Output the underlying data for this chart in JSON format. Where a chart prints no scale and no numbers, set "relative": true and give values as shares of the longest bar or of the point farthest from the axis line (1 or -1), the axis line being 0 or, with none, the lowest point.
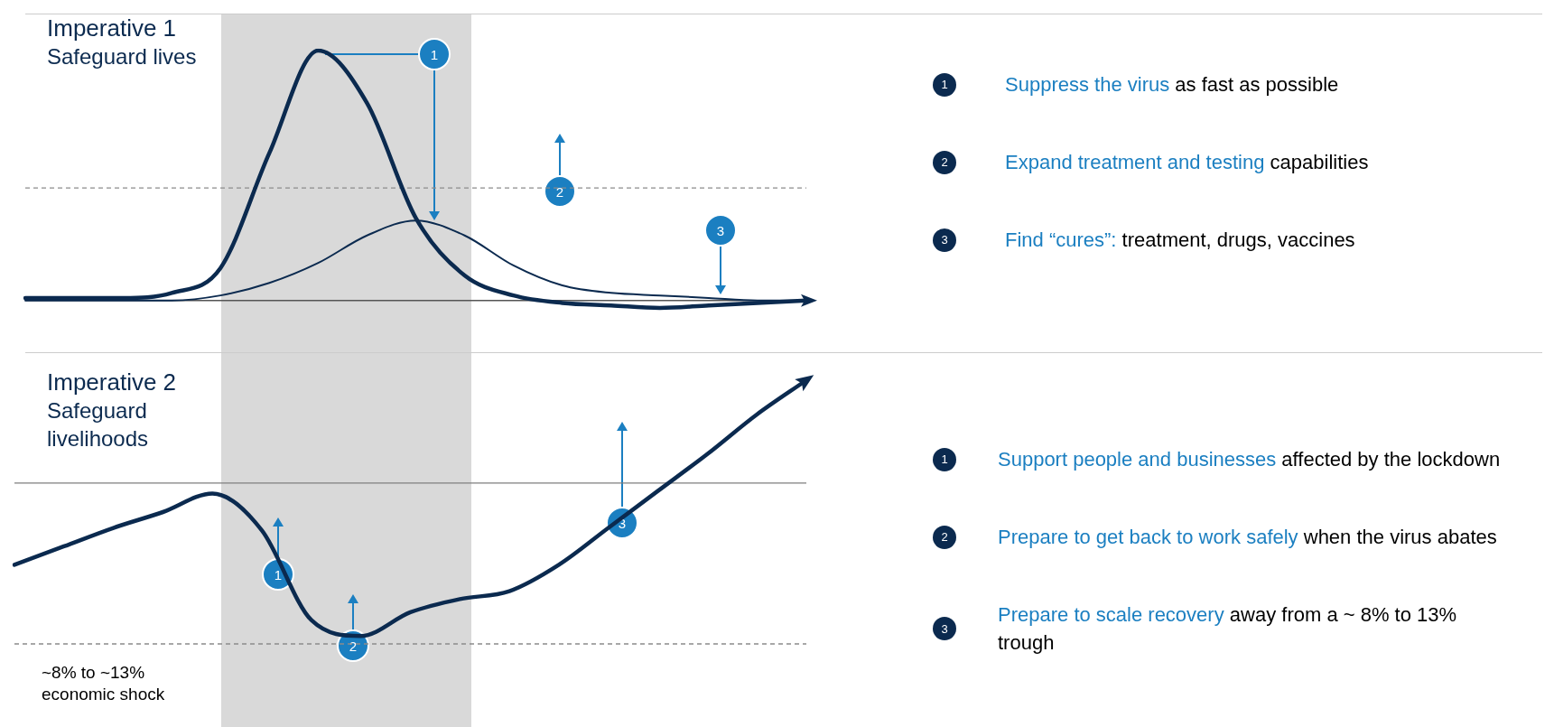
{
  "chart_data": [
    {
      "type": "line",
      "title": "Imperative 1",
      "subtitle": "Safeguard lives",
      "relative": true,
      "legend": false,
      "marker": "none",
      "line_style": "solid",
      "categories": [
        null,
        null,
        null,
        null,
        null,
        null,
        null,
        null,
        null,
        null,
        null,
        null,
        null,
        null,
        null,
        null,
        null
      ],
      "series": [
        {
          "color": "#0b2a4f",
          "values": [
            0.01,
            0.01,
            0.01,
            0.03,
            0.13,
            0.59,
            1.0,
            0.79,
            0.33,
            0.1,
            0.02,
            -0.01,
            -0.02,
            -0.03,
            -0.02,
            -0.01,
            0
          ]
        },
        {
          "color": "#0b2a4f",
          "values": [
            0,
            0,
            0,
            0,
            0.02,
            0.07,
            0.15,
            0.26,
            0.32,
            0.26,
            0.14,
            0.06,
            0.03,
            0.02,
            0.01,
            0,
            0
          ]
        }
      ],
      "ref_lines": [
        {
          "axis": "y",
          "value": 0.45,
          "line_style": "dashed",
          "color": "#8c8c8c"
        }
      ],
      "annotations": [
        "1",
        "2",
        "3",
        "1",
        "Suppress the virus",
        "as fast as possible",
        "2",
        "Expand treatment and testing",
        "capabilities",
        "3",
        "Find “cures”:",
        "treatment, drugs, vaccines"
      ]
    },
    {
      "type": "line",
      "title": "Imperative 2",
      "subtitle": "Safeguard livelihoods",
      "relative": true,
      "legend": false,
      "marker": "none",
      "line_style": "solid",
      "categories": [
        null,
        null,
        null,
        null,
        null,
        null,
        null,
        null,
        null,
        null,
        null,
        null,
        null,
        null,
        null,
        null,
        null
      ],
      "series": [
        {
          "color": "#0b2a4f",
          "values": [
            0.3,
            0.37,
            0.44,
            0.5,
            0.57,
            0.43,
            0.09,
            0.03,
            0.12,
            0.17,
            0.2,
            0.3,
            0.44,
            0.58,
            0.72,
            0.87,
            1.0
          ]
        }
      ],
      "ref_lines": [
        {
          "axis": "y",
          "value": 0.61,
          "line_style": "solid",
          "color": "#7f7f7f"
        },
        {
          "axis": "y",
          "value": 0,
          "line_style": "dashed",
          "color": "#8c8c8c"
        }
      ],
      "annotations": [
        "1",
        "2",
        "3",
        "1",
        "Support people and businesses",
        "affected by the lockdown",
        "2",
        "Prepare to get back to work safely",
        "when the virus abates",
        "3",
        "Prepare to scale recovery",
        "away from a ~ 8% to 13% trough",
        "~8% to ~13% economic shock"
      ]
    }
  ]
}
